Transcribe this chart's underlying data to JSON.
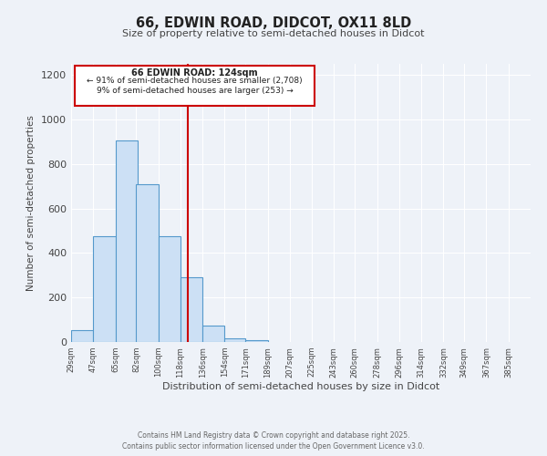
{
  "title": "66, EDWIN ROAD, DIDCOT, OX11 8LD",
  "subtitle": "Size of property relative to semi-detached houses in Didcot",
  "xlabel": "Distribution of semi-detached houses by size in Didcot",
  "ylabel": "Number of semi-detached properties",
  "bar_left_edges": [
    29,
    47,
    65,
    82,
    100,
    118,
    136,
    154,
    171,
    189,
    207
  ],
  "bar_widths": [
    18,
    18,
    18,
    18,
    18,
    18,
    18,
    17,
    18,
    18,
    18
  ],
  "bar_heights": [
    55,
    475,
    905,
    710,
    475,
    290,
    75,
    15,
    10,
    0,
    0
  ],
  "bar_color": "#cce0f5",
  "bar_edgecolor": "#5599cc",
  "bg_color": "#eef2f8",
  "grid_color": "#ffffff",
  "vline_x": 124,
  "vline_color": "#cc0000",
  "annotation_title": "66 EDWIN ROAD: 124sqm",
  "annotation_line1": "← 91% of semi-detached houses are smaller (2,708)",
  "annotation_line2": "9% of semi-detached houses are larger (253) →",
  "annotation_box_color": "#ffffff",
  "annotation_box_edgecolor": "#cc0000",
  "tick_labels": [
    "29sqm",
    "47sqm",
    "65sqm",
    "82sqm",
    "100sqm",
    "118sqm",
    "136sqm",
    "154sqm",
    "171sqm",
    "189sqm",
    "207sqm",
    "225sqm",
    "243sqm",
    "260sqm",
    "278sqm",
    "296sqm",
    "314sqm",
    "332sqm",
    "349sqm",
    "367sqm",
    "385sqm"
  ],
  "ylim": [
    0,
    1250
  ],
  "yticks": [
    0,
    200,
    400,
    600,
    800,
    1000,
    1200
  ],
  "tick_positions": [
    29,
    47,
    65,
    82,
    100,
    118,
    136,
    154,
    171,
    189,
    207,
    225,
    243,
    260,
    278,
    296,
    314,
    332,
    349,
    367,
    385
  ],
  "xlim": [
    29,
    403
  ],
  "footer1": "Contains HM Land Registry data © Crown copyright and database right 2025.",
  "footer2": "Contains public sector information licensed under the Open Government Licence v3.0."
}
